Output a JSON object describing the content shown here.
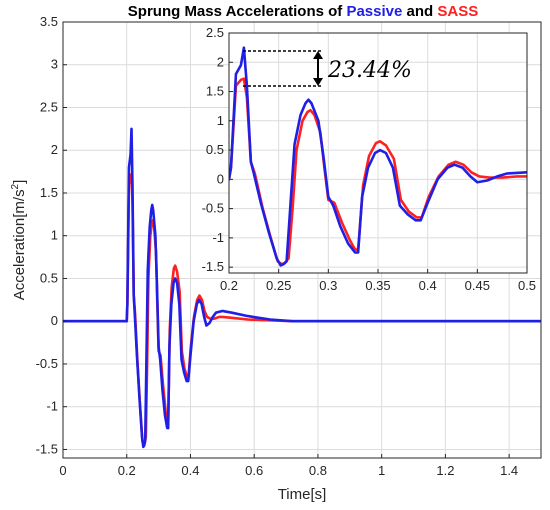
{
  "chart_data": {
    "type": "line",
    "title": {
      "prefix": "Sprung Mass Accelerations of ",
      "series1": "Passive",
      "middle": " and ",
      "series2": "SASS",
      "series1_color": "#1f1fe6",
      "series2_color": "#ff2020"
    },
    "xlabel": "Time[s]",
    "ylabel_main": "Acceleration[m/s",
    "ylabel_sup": "2",
    "ylabel_end": "]",
    "xlim": [
      0,
      1.5
    ],
    "ylim": [
      -1.6,
      3.5
    ],
    "xticks": [
      "0",
      "0.2",
      "0.4",
      "0.6",
      "0.8",
      "1",
      "1.2",
      "1.4"
    ],
    "yticks": [
      "-1.5",
      "-1",
      "-0.5",
      "0",
      "0.5",
      "1",
      "1.5",
      "2",
      "2.5",
      "3",
      "3.5"
    ],
    "grid": true,
    "series": [
      {
        "name": "Passive",
        "color": "#1f1fe6",
        "points": [
          [
            0,
            0
          ],
          [
            0.2,
            0
          ],
          [
            0.202,
            0.2
          ],
          [
            0.207,
            1.8
          ],
          [
            0.212,
            1.95
          ],
          [
            0.215,
            2.25
          ],
          [
            0.218,
            1.6
          ],
          [
            0.222,
            0.3
          ],
          [
            0.225,
            0.1
          ],
          [
            0.232,
            -0.4
          ],
          [
            0.24,
            -0.9
          ],
          [
            0.248,
            -1.35
          ],
          [
            0.252,
            -1.47
          ],
          [
            0.255,
            -1.45
          ],
          [
            0.258,
            -1.4
          ],
          [
            0.262,
            -0.4
          ],
          [
            0.266,
            0.6
          ],
          [
            0.272,
            1.1
          ],
          [
            0.277,
            1.3
          ],
          [
            0.28,
            1.36
          ],
          [
            0.283,
            1.3
          ],
          [
            0.29,
            1.0
          ],
          [
            0.295,
            0.4
          ],
          [
            0.3,
            -0.3
          ],
          [
            0.305,
            -0.45
          ],
          [
            0.312,
            -0.8
          ],
          [
            0.32,
            -1.1
          ],
          [
            0.327,
            -1.25
          ],
          [
            0.33,
            -1.25
          ],
          [
            0.334,
            -0.3
          ],
          [
            0.34,
            0.2
          ],
          [
            0.347,
            0.45
          ],
          [
            0.352,
            0.5
          ],
          [
            0.358,
            0.45
          ],
          [
            0.365,
            0.2
          ],
          [
            0.372,
            -0.45
          ],
          [
            0.38,
            -0.6
          ],
          [
            0.388,
            -0.7
          ],
          [
            0.393,
            -0.7
          ],
          [
            0.4,
            -0.4
          ],
          [
            0.41,
            0.0
          ],
          [
            0.42,
            0.2
          ],
          [
            0.427,
            0.25
          ],
          [
            0.435,
            0.2
          ],
          [
            0.443,
            0.05
          ],
          [
            0.45,
            -0.05
          ],
          [
            0.46,
            -0.02
          ],
          [
            0.47,
            0.05
          ],
          [
            0.48,
            0.1
          ],
          [
            0.5,
            0.12
          ],
          [
            0.53,
            0.1
          ],
          [
            0.58,
            0.06
          ],
          [
            0.65,
            0.02
          ],
          [
            0.72,
            0.0
          ],
          [
            1.5,
            0.0
          ]
        ]
      },
      {
        "name": "SASS",
        "color": "#ff2020",
        "points": [
          [
            0,
            0
          ],
          [
            0.2,
            0
          ],
          [
            0.202,
            0.2
          ],
          [
            0.207,
            1.6
          ],
          [
            0.212,
            1.7
          ],
          [
            0.215,
            1.72
          ],
          [
            0.218,
            1.4
          ],
          [
            0.222,
            0.3
          ],
          [
            0.226,
            0.1
          ],
          [
            0.234,
            -0.5
          ],
          [
            0.242,
            -1.0
          ],
          [
            0.249,
            -1.4
          ],
          [
            0.253,
            -1.45
          ],
          [
            0.256,
            -1.43
          ],
          [
            0.26,
            -1.35
          ],
          [
            0.264,
            -0.5
          ],
          [
            0.268,
            0.5
          ],
          [
            0.274,
            1.0
          ],
          [
            0.279,
            1.15
          ],
          [
            0.282,
            1.18
          ],
          [
            0.286,
            1.1
          ],
          [
            0.292,
            0.8
          ],
          [
            0.296,
            0.2
          ],
          [
            0.3,
            -0.35
          ],
          [
            0.306,
            -0.4
          ],
          [
            0.314,
            -0.75
          ],
          [
            0.322,
            -1.05
          ],
          [
            0.327,
            -1.2
          ],
          [
            0.33,
            -1.2
          ],
          [
            0.335,
            -0.1
          ],
          [
            0.341,
            0.4
          ],
          [
            0.348,
            0.62
          ],
          [
            0.352,
            0.65
          ],
          [
            0.358,
            0.58
          ],
          [
            0.366,
            0.35
          ],
          [
            0.373,
            -0.35
          ],
          [
            0.381,
            -0.55
          ],
          [
            0.389,
            -0.65
          ],
          [
            0.394,
            -0.65
          ],
          [
            0.401,
            -0.3
          ],
          [
            0.411,
            0.05
          ],
          [
            0.421,
            0.25
          ],
          [
            0.428,
            0.3
          ],
          [
            0.436,
            0.25
          ],
          [
            0.444,
            0.12
          ],
          [
            0.452,
            0.05
          ],
          [
            0.462,
            0.03
          ],
          [
            0.475,
            0.03
          ],
          [
            0.49,
            0.05
          ],
          [
            0.5,
            0.05
          ],
          [
            0.53,
            0.04
          ],
          [
            0.58,
            0.02
          ],
          [
            0.65,
            0.01
          ],
          [
            0.72,
            0.0
          ],
          [
            1.5,
            0.0
          ]
        ]
      }
    ],
    "inset": {
      "xlim": [
        0.2,
        0.5
      ],
      "ylim": [
        -1.6,
        2.5
      ],
      "xticks": [
        "0.2",
        "0.25",
        "0.3",
        "0.35",
        "0.4",
        "0.45",
        "0.5"
      ],
      "yticks": [
        "-1.5",
        "-1",
        "-0.5",
        "0",
        "0.5",
        "1",
        "1.5",
        "2",
        "2.5"
      ],
      "annotation": "23.44%"
    }
  }
}
